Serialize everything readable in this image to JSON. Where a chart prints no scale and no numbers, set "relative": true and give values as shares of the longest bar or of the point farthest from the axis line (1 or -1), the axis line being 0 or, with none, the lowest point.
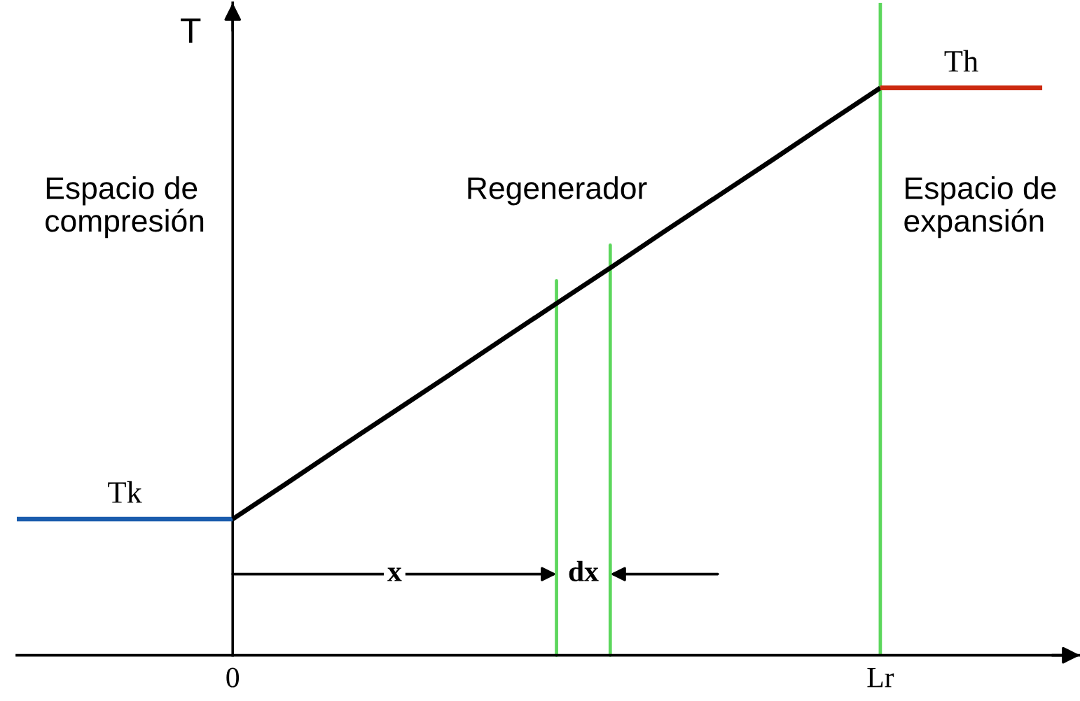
{
  "chart_data": {
    "type": "line",
    "relative": true,
    "ylabel": "T",
    "categories": [
      null,
      null,
      null,
      null,
      "0",
      null,
      null,
      null,
      null,
      null,
      null,
      null,
      null,
      null,
      null,
      null,
      "Lr",
      null,
      null,
      null
    ],
    "series": [
      {
        "name": "Tk",
        "color": "#1a5cad",
        "values": [
          0.24,
          0.24,
          0.24,
          0.24,
          0.24,
          null,
          null,
          null,
          null,
          null,
          null,
          null,
          null,
          null,
          null,
          null,
          null,
          null,
          null,
          null
        ]
      },
      {
        "color": "#000000",
        "values": [
          null,
          null,
          null,
          null,
          0.24,
          0.303,
          0.367,
          0.43,
          0.493,
          0.557,
          0.62,
          0.683,
          0.747,
          0.81,
          0.873,
          0.937,
          1,
          null,
          null,
          null
        ]
      },
      {
        "name": "Th",
        "color": "#cc2a10",
        "values": [
          null,
          null,
          null,
          null,
          null,
          null,
          null,
          null,
          null,
          null,
          null,
          null,
          null,
          null,
          null,
          null,
          1,
          1,
          1,
          1
        ]
      }
    ],
    "ref_lines": [
      {
        "axis": "x",
        "value": "Lr",
        "color": "#5cd65c"
      }
    ],
    "annotations": [
      "Espacio de\ncompresión",
      "Regenerador",
      "Espacio de\nexpansión",
      "x",
      "dx"
    ],
    "legend": false,
    "marker": "none",
    "line_style": "solid"
  }
}
